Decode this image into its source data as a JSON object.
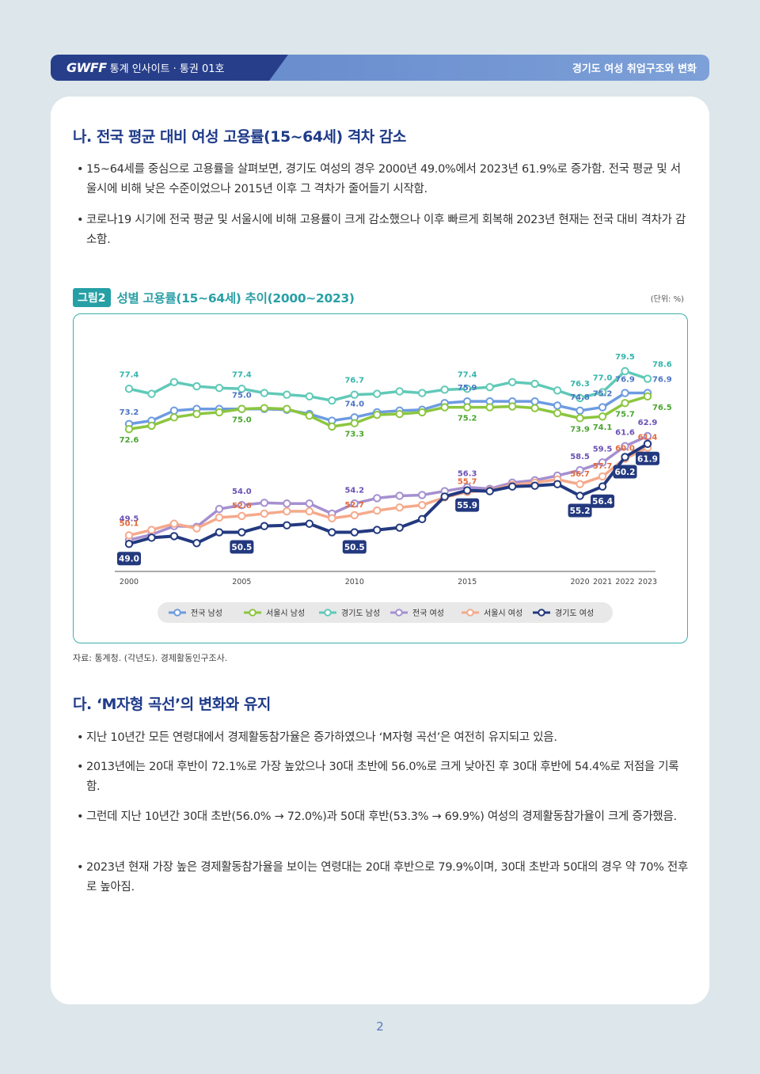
{
  "header": {
    "brand": "GWFF",
    "series_text": "통계 인사이트 · 통권 01호",
    "report_title": "경기도 여성 취업구조와 변화"
  },
  "section1": {
    "title": "나. 전국 평균 대비 여성 고용률(15~64세) 격차 감소",
    "bullets": [
      "15~64세를 중심으로 고용률을 살펴보면, 경기도 여성의 경우 2000년 49.0%에서 2023년 61.9%로 증가함. 전국 평균 및 서울시에 비해 낮은 수준이었으나 2015년 이후 그 격차가 줄어들기 시작함.",
      "코로나19 시기에 전국 평균 및 서울시에 비해 고용률이 크게 감소했으나 이후 빠르게 회복해 2023년 현재는 전국 대비 격차가 감소함."
    ]
  },
  "figure": {
    "badge": "그림2",
    "title": "성별 고용률(15~64세) 추이(2000~2023)",
    "unit": "(단위: %)",
    "source": "자료: 통계청. (각년도). 경제활동인구조사."
  },
  "chart_data": {
    "type": "line",
    "x": [
      2000,
      2001,
      2002,
      2003,
      2004,
      2005,
      2006,
      2007,
      2008,
      2009,
      2010,
      2011,
      2012,
      2013,
      2014,
      2015,
      2016,
      2017,
      2018,
      2019,
      2020,
      2021,
      2022,
      2023
    ],
    "x_tick_labels": [
      "2000",
      "2005",
      "2010",
      "2015",
      "2020",
      "2021",
      "2022",
      "2023"
    ],
    "series": [
      {
        "name": "전국 남성",
        "color": "#6d9be0",
        "values": [
          73.2,
          73.6,
          74.8,
          75.0,
          75.0,
          75.0,
          75.0,
          74.9,
          74.4,
          73.6,
          74.0,
          74.6,
          74.8,
          74.9,
          75.7,
          75.9,
          75.9,
          75.9,
          75.9,
          75.4,
          74.8,
          75.2,
          76.9,
          76.9
        ],
        "labels": {
          "2000": "73.2",
          "2005": "75.0",
          "2010": "74.0",
          "2015": "75.9",
          "2020": "74.8",
          "2021": "75.2",
          "2022": "76.9",
          "2023": "76.9"
        }
      },
      {
        "name": "서울시 남성",
        "color": "#8cc63f",
        "values": [
          72.6,
          73.0,
          74.0,
          74.4,
          74.6,
          75.0,
          75.1,
          75.0,
          74.2,
          72.9,
          73.3,
          74.3,
          74.4,
          74.6,
          75.2,
          75.2,
          75.2,
          75.3,
          75.1,
          74.5,
          73.9,
          74.1,
          75.7,
          76.5
        ],
        "labels": {
          "2000": "72.6",
          "2005": "75.0",
          "2010": "73.3",
          "2015": "75.2",
          "2020": "73.9",
          "2021": "74.1",
          "2022": "75.7",
          "2023": "76.5"
        }
      },
      {
        "name": "경기도 남성",
        "color": "#60c9b8",
        "values": [
          77.4,
          76.8,
          78.2,
          77.7,
          77.5,
          77.4,
          76.9,
          76.7,
          76.5,
          76.0,
          76.7,
          76.8,
          77.1,
          76.9,
          77.3,
          77.4,
          77.6,
          78.2,
          78.0,
          77.2,
          76.3,
          77.0,
          79.5,
          78.6
        ],
        "labels": {
          "2000": "77.4",
          "2005": "77.4",
          "2010": "76.7",
          "2015": "77.4",
          "2020": "76.3",
          "2021": "77.0",
          "2022": "79.5",
          "2023": "78.6"
        }
      },
      {
        "name": "전국 여성",
        "color": "#a58fd0",
        "values": [
          49.5,
          50.2,
          51.3,
          51.2,
          53.5,
          54.0,
          54.3,
          54.2,
          54.2,
          52.9,
          54.2,
          54.9,
          55.2,
          55.3,
          55.8,
          56.3,
          56.1,
          56.9,
          57.2,
          57.8,
          58.5,
          59.5,
          61.6,
          62.9
        ],
        "labels": {
          "2000": "49.5",
          "2005": "54.0",
          "2010": "54.2",
          "2015": "56.3",
          "2020": "58.5",
          "2021": "59.5",
          "2022": "61.6",
          "2023": "62.9"
        }
      },
      {
        "name": "서울시 여성",
        "color": "#f5a98b",
        "values": [
          50.1,
          50.8,
          51.6,
          51.0,
          52.4,
          52.6,
          52.9,
          53.2,
          53.2,
          52.3,
          52.7,
          53.3,
          53.7,
          54.0,
          55.0,
          55.7,
          55.9,
          56.6,
          56.9,
          57.3,
          56.7,
          57.7,
          60.0,
          61.4
        ],
        "labels": {
          "2000": "50.1",
          "2005": "52.6",
          "2010": "52.7",
          "2015": "55.7",
          "2020": "56.7",
          "2021": "57.7",
          "2022": "60.0",
          "2023": "61.4"
        }
      },
      {
        "name": "경기도 여성",
        "color": "#23397f",
        "values": [
          49.0,
          49.8,
          50.0,
          49.1,
          50.5,
          50.5,
          51.3,
          51.4,
          51.6,
          50.5,
          50.5,
          50.8,
          51.1,
          52.2,
          55.1,
          55.9,
          55.8,
          56.4,
          56.5,
          56.7,
          55.2,
          56.4,
          60.2,
          61.9
        ],
        "labels": {
          "2000": "49.0",
          "2005": "50.5",
          "2010": "50.5",
          "2015": "55.9",
          "2020": "55.2",
          "2021": "56.4",
          "2022": "60.2",
          "2023": "61.9"
        }
      }
    ],
    "legend_position": "bottom"
  },
  "section2": {
    "title": "다. ‘M자형 곡선’의 변화와 유지",
    "bullets": [
      "지난 10년간 모든 연령대에서 경제활동참가율은 증가하였으나 ‘M자형 곡선’은 여전히 유지되고 있음.",
      "2013년에는 20대 후반이 72.1%로 가장 높았으나 30대 초반에 56.0%로 크게 낮아진 후 30대 후반에 54.4%로 저점을 기록함.",
      "그런데 지난 10년간 30대 초반(56.0% → 72.0%)과 50대 후반(53.3% → 69.9%) 여성의 경제활동참가율이 크게 증가했음.",
      "2023년 현재 가장 높은 경제활동참가율을 보이는 연령대는 20대 후반으로 79.9%이며, 30대 초반과 50대의 경우 약 70% 전후로 높아짐."
    ]
  },
  "page_number": "2"
}
